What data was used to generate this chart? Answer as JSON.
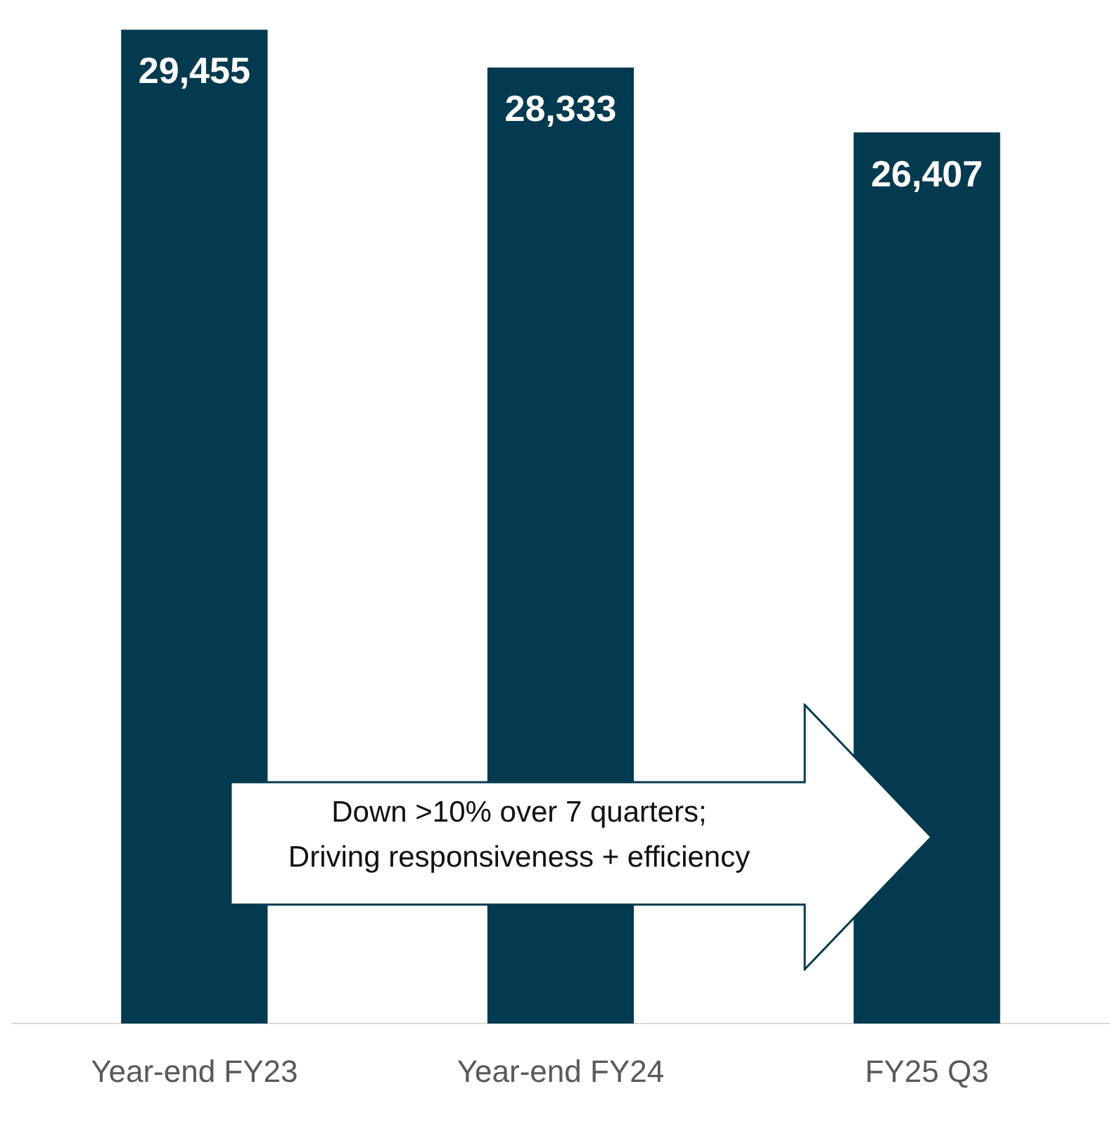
{
  "chart_data": {
    "type": "bar",
    "categories": [
      "Year-end FY23",
      "Year-end FY24",
      "FY25 Q3"
    ],
    "values": [
      29455,
      28333,
      26407
    ],
    "value_labels": [
      "29,455",
      "28,333",
      "26,407"
    ],
    "color": "#033a4f",
    "grid": false,
    "legend": false,
    "tick_labels": "x",
    "annotations": [
      "Down >10% over 7 quarters; Driving responsiveness + efficiency"
    ]
  }
}
